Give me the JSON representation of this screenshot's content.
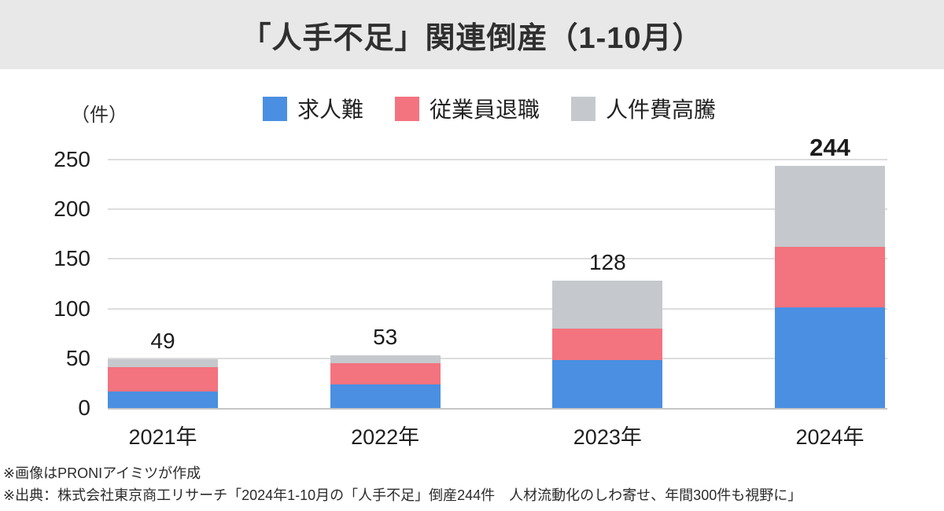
{
  "header": {
    "title": "「人手不足」関連倒産（1-10月）"
  },
  "chart_data": {
    "type": "bar",
    "stacked": true,
    "title": "「人手不足」関連倒産（1-10月）",
    "unit_label": "（件）",
    "categories": [
      "2021年",
      "2022年",
      "2023年",
      "2024年"
    ],
    "series": [
      {
        "name": "求人難",
        "color": "#4a8fe2",
        "values": [
          17,
          24,
          48,
          101
        ]
      },
      {
        "name": "従業員退職",
        "color": "#f3737f",
        "values": [
          24,
          21,
          32,
          61
        ]
      },
      {
        "name": "人件費高騰",
        "color": "#c5c8cc",
        "values": [
          8,
          8,
          48,
          82
        ]
      }
    ],
    "totals": [
      49,
      53,
      128,
      244
    ],
    "emphasized_total_index": 3,
    "ylim": [
      0,
      250
    ],
    "ytick_step": 50,
    "yticks": [
      0,
      50,
      100,
      150,
      200,
      250
    ],
    "grid": true,
    "legend_position": "top"
  },
  "footer": {
    "line1": "※画像はPRONIアイミツが作成",
    "line2": "※出典：株式会社東京商工リサーチ「2024年1-10月の「人手不足」倒産244件　人材流動化のしわ寄せ、年間300件も視野に」"
  },
  "colors": {
    "header_background": "#e8e8e8",
    "series_blue": "#4a8fe2",
    "series_red": "#f3737f",
    "series_gray": "#c5c8cc",
    "gridline": "#dddddd",
    "axis_line": "#c6c6c6"
  }
}
